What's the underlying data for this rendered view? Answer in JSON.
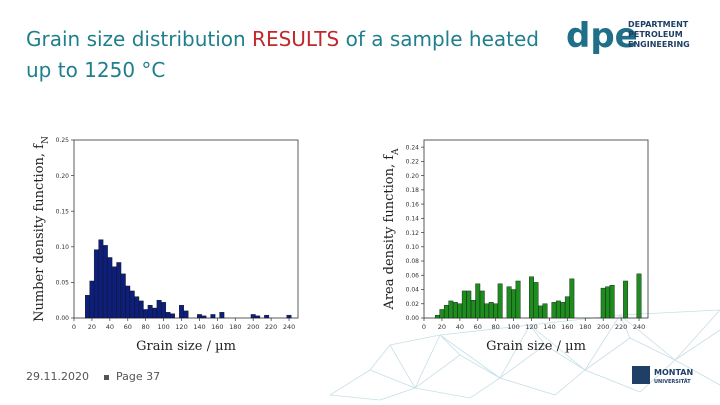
{
  "slide": {
    "title_part1": "Grain size distribution ",
    "title_highlight": "RESULTS",
    "title_part2": " of a sample heated up to 1250 °C",
    "footer_date": "29.11.2020",
    "footer_page": "Page 37",
    "colors": {
      "title": "#1f7f8c",
      "highlight": "#c0282d",
      "bar_left": "#0d1f7a",
      "bar_right": "#1e8c1e"
    }
  },
  "logo": {
    "mark": "dpe",
    "line1": "DEPARTMENT",
    "line2": "PETROLEUM",
    "line3": "ENGINEERING"
  },
  "footer_logo": {
    "line1": "MONTAN",
    "line2": "UNIVERSITÄT"
  },
  "chart_data": [
    {
      "type": "bar",
      "xlabel": "Grain size / µm",
      "ylabel": "Number density function, f",
      "ylabel_sub": "N",
      "xlim": [
        0,
        250
      ],
      "ylim": [
        0,
        0.25
      ],
      "xticks": [
        "0",
        "20",
        "40",
        "60",
        "80",
        "100",
        "120",
        "140",
        "160",
        "180",
        "200",
        "220",
        "240"
      ],
      "yticks": [
        "0.00",
        "0.05",
        "0.10",
        "0.15",
        "0.20",
        "0.25"
      ],
      "bin_width": 5,
      "x": [
        15,
        20,
        25,
        30,
        35,
        40,
        45,
        50,
        55,
        60,
        65,
        70,
        75,
        80,
        85,
        90,
        95,
        100,
        105,
        110,
        120,
        125,
        140,
        145,
        155,
        165,
        200,
        205,
        215,
        240
      ],
      "values": [
        0.032,
        0.052,
        0.096,
        0.11,
        0.102,
        0.085,
        0.072,
        0.078,
        0.062,
        0.045,
        0.038,
        0.03,
        0.024,
        0.012,
        0.018,
        0.014,
        0.025,
        0.022,
        0.008,
        0.006,
        0.018,
        0.01,
        0.005,
        0.003,
        0.005,
        0.008,
        0.005,
        0.003,
        0.004,
        0.004
      ]
    },
    {
      "type": "bar",
      "xlabel": "Grain size / µm",
      "ylabel": "Area density function, f",
      "ylabel_sub": "A",
      "xlim": [
        0,
        250
      ],
      "ylim": [
        0,
        0.25
      ],
      "xticks": [
        "0",
        "20",
        "40",
        "60",
        "80",
        "100",
        "120",
        "140",
        "160",
        "180",
        "200",
        "220",
        "240"
      ],
      "yticks": [
        "0.00",
        "0.02",
        "0.04",
        "0.06",
        "0.08",
        "0.10",
        "0.12",
        "0.14",
        "0.16",
        "0.18",
        "0.20",
        "0.22",
        "0.24"
      ],
      "bin_width": 5,
      "x": [
        15,
        20,
        25,
        30,
        35,
        40,
        45,
        50,
        55,
        60,
        65,
        70,
        75,
        80,
        85,
        95,
        100,
        105,
        120,
        125,
        130,
        135,
        145,
        150,
        155,
        160,
        165,
        200,
        205,
        210,
        225,
        240
      ],
      "values": [
        0.004,
        0.012,
        0.018,
        0.024,
        0.022,
        0.02,
        0.038,
        0.038,
        0.025,
        0.048,
        0.038,
        0.02,
        0.022,
        0.02,
        0.048,
        0.044,
        0.04,
        0.052,
        0.058,
        0.05,
        0.017,
        0.02,
        0.022,
        0.024,
        0.022,
        0.03,
        0.055,
        0.042,
        0.044,
        0.046,
        0.052,
        0.062
      ]
    }
  ]
}
